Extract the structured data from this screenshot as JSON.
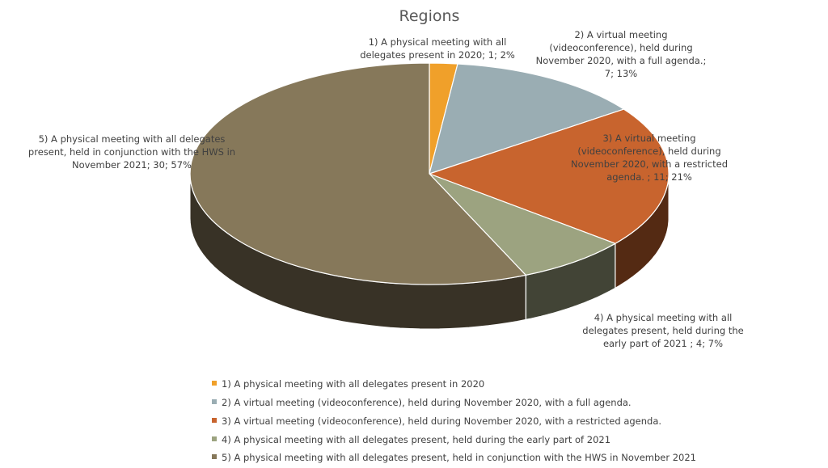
{
  "chart_data": {
    "type": "pie",
    "style": "3d",
    "title": "Regions",
    "legend_position": "bottom",
    "slices": [
      {
        "category": "1) A physical meeting with all delegates present in 2020",
        "value": 1,
        "percent": "2%",
        "color": "#F0A02A",
        "label_lines": [
          "1) A physical meeting with all",
          "delegates present in 2020; 1; 2%"
        ]
      },
      {
        "category": "2) A virtual meeting (videoconference), held during November 2020, with a full agenda.",
        "value": 7,
        "percent": "13%",
        "color": "#9AADB3",
        "label_lines": [
          "2) A virtual meeting",
          "(videoconference), held during",
          "November 2020, with a full agenda.;",
          "7; 13%"
        ]
      },
      {
        "category": "3) A virtual meeting (videoconference), held during November 2020, with a restricted agenda.",
        "value": 11,
        "percent": "21%",
        "color": "#C8642E",
        "label_lines": [
          "3) A virtual meeting",
          "(videoconference), held during",
          "November 2020, with a restricted",
          "agenda. ; 11; 21%"
        ]
      },
      {
        "category": "4) A physical meeting with all delegates present, held during the early part of 2021",
        "value": 4,
        "percent": "7%",
        "color": "#9CA380",
        "label_lines": [
          "4) A physical meeting with all",
          "delegates present, held during the",
          "early part of 2021 ; 4; 7%"
        ]
      },
      {
        "category": "5) A physical meeting with all delegates present, held in conjunction with the HWS in November 2021",
        "value": 30,
        "percent": "57%",
        "color": "#86785A",
        "label_lines": [
          "5) A physical meeting with all delegates",
          "present, held in conjunction with the HWS in",
          "November 2021; 30; 57%"
        ]
      }
    ]
  }
}
